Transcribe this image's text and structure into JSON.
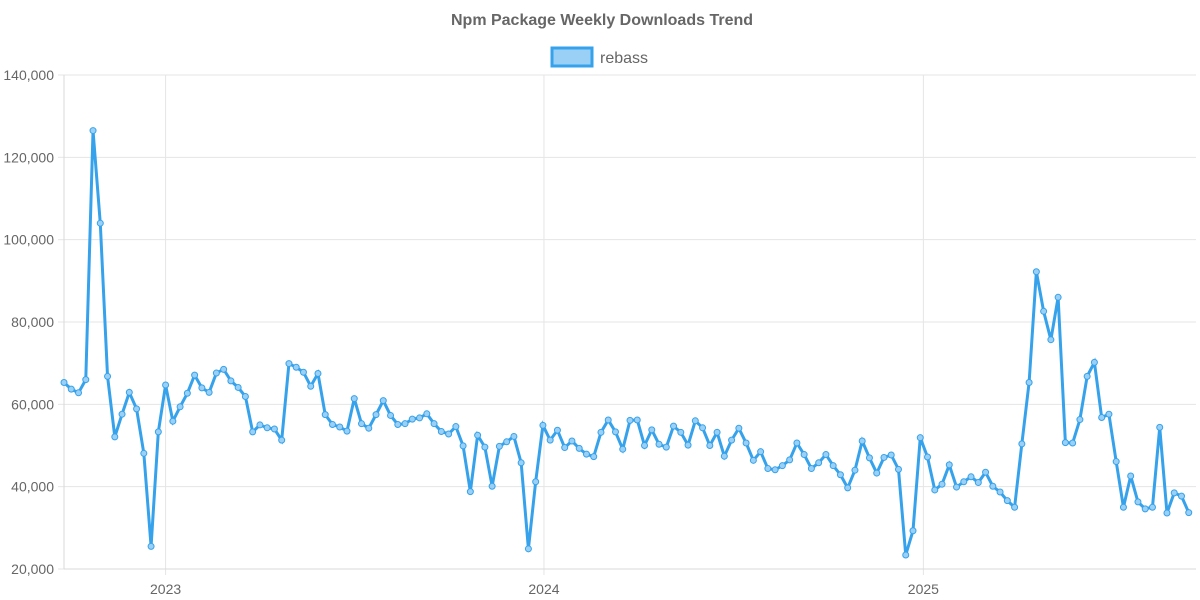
{
  "chart_data": {
    "type": "line",
    "title": "Npm Package Weekly Downloads Trend",
    "xlabel": "",
    "ylabel": "",
    "ylim": [
      20000,
      140000
    ],
    "y_ticks": [
      20000,
      40000,
      60000,
      80000,
      100000,
      120000,
      140000
    ],
    "y_tick_labels": [
      "20,000",
      "40,000",
      "60,000",
      "80,000",
      "100,000",
      "120,000",
      "140,000"
    ],
    "x_tick_labels": [
      "2023",
      "2024",
      "2025"
    ],
    "x_ticks": [
      "2023-01-01",
      "2024-01-01",
      "2025-01-01"
    ],
    "xlim": [
      "2022-09-25",
      "2025-09-21"
    ],
    "grid": true,
    "legend_position": "top",
    "colors": {
      "line": "#36a2eb",
      "fill": "#9ad0f5"
    },
    "series": [
      {
        "name": "rebass",
        "x_start": "2022-09-25",
        "x_step_days": 7,
        "values": [
          65300,
          63700,
          62800,
          66000,
          126500,
          104000,
          66800,
          52100,
          57600,
          62900,
          58900,
          48100,
          25500,
          53300,
          64700,
          55900,
          59400,
          62700,
          67100,
          64000,
          62900,
          67600,
          68500,
          65700,
          64100,
          61900,
          53300,
          55000,
          54300,
          54000,
          51300,
          69900,
          69000,
          67800,
          64400,
          67500,
          57500,
          55100,
          54500,
          53500,
          61400,
          55300,
          54200,
          57500,
          60900,
          57300,
          55100,
          55300,
          56400,
          56700,
          57700,
          55300,
          53400,
          52800,
          54600,
          49900,
          38800,
          52500,
          49600,
          40100,
          49800,
          50900,
          52200,
          45800,
          24900,
          41200,
          54900,
          51300,
          53700,
          49500,
          51100,
          49300,
          47900,
          47300,
          53200,
          56200,
          53300,
          49100,
          56100,
          56200,
          50000,
          53800,
          50300,
          49600,
          54700,
          53200,
          50100,
          56000,
          54300,
          50000,
          53200,
          47400,
          51300,
          54200,
          50600,
          46400,
          48500,
          44400,
          44100,
          45100,
          46500,
          50600,
          47800,
          44400,
          45800,
          47800,
          45100,
          42900,
          39700,
          44000,
          51100,
          47000,
          43300,
          47100,
          47700,
          44200,
          23400,
          29300,
          51900,
          47200,
          39200,
          40600,
          45300,
          39900,
          41200,
          42400,
          41000,
          43500,
          40100,
          38700,
          36600,
          35000,
          50400,
          65300,
          92200,
          82600,
          75700,
          86000,
          50700,
          50600,
          56300,
          66800,
          70200,
          56800,
          57600,
          46100,
          35000,
          42600,
          36300,
          34600,
          35000,
          54400,
          33600,
          38500,
          37700,
          33700
        ]
      }
    ]
  }
}
